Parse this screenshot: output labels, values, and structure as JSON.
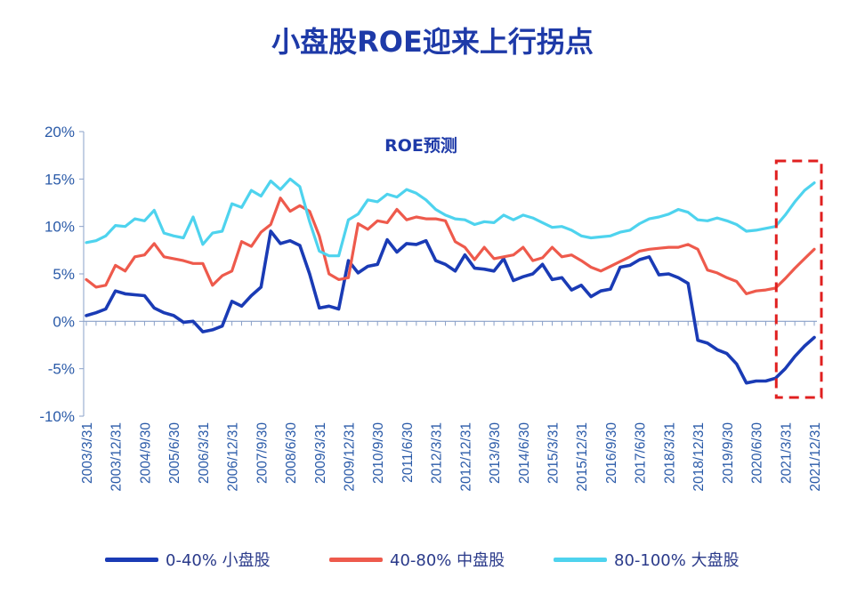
{
  "title": "小盘股ROE迎来上行拐点",
  "chart_data": {
    "type": "line",
    "subtitle": "ROE预测",
    "ylim": [
      -10,
      20
    ],
    "y_ticks": [
      "20%",
      "15%",
      "10%",
      "5%",
      "0%",
      "-5%",
      "-10%"
    ],
    "y_tick_values": [
      20,
      15,
      10,
      5,
      0,
      -5,
      -10
    ],
    "x_tick_labels": [
      "2003/3/31",
      "2003/12/31",
      "2004/9/30",
      "2005/6/30",
      "2006/3/31",
      "2006/12/31",
      "2007/9/30",
      "2008/6/30",
      "2009/3/31",
      "2009/12/31",
      "2010/9/30",
      "2011/6/30",
      "2012/3/31",
      "2012/12/31",
      "2013/9/30",
      "2014/6/30",
      "2015/3/31",
      "2015/12/31",
      "2016/9/30",
      "2017/6/30",
      "2018/3/31",
      "2018/12/31",
      "2019/9/30",
      "2020/6/30",
      "2021/3/31",
      "2021/12/31"
    ],
    "forecast_box": {
      "from_index": 72,
      "to_index": 75,
      "color": "#e02020"
    },
    "series": [
      {
        "name": "0-40% 小盘股",
        "color": "#1a3bb5",
        "values": [
          0.6,
          0.9,
          1.3,
          3.2,
          2.9,
          2.8,
          2.7,
          1.4,
          0.9,
          0.6,
          -0.1,
          0.0,
          -1.1,
          -0.9,
          -0.5,
          2.1,
          1.6,
          2.7,
          3.6,
          9.5,
          8.2,
          8.5,
          8.0,
          5.0,
          1.4,
          1.6,
          1.3,
          6.4,
          5.1,
          5.8,
          6.0,
          8.6,
          7.3,
          8.2,
          8.1,
          8.5,
          6.4,
          6.0,
          5.3,
          7.0,
          5.6,
          5.5,
          5.3,
          6.6,
          4.3,
          4.7,
          5.0,
          6.0,
          4.4,
          4.6,
          3.3,
          3.8,
          2.6,
          3.2,
          3.4,
          5.7,
          5.9,
          6.5,
          6.8,
          4.9,
          5.0,
          4.6,
          4.0,
          -2.0,
          -2.3,
          -3.0,
          -3.4,
          -4.5,
          -6.5,
          -6.3,
          -6.3,
          -6.0,
          -5.0,
          -3.7,
          -2.6,
          -1.7
        ]
      },
      {
        "name": "40-80% 中盘股",
        "color": "#ee5a4c",
        "values": [
          4.4,
          3.6,
          3.8,
          5.9,
          5.3,
          6.8,
          7.0,
          8.2,
          6.8,
          6.6,
          6.4,
          6.1,
          6.1,
          3.8,
          4.8,
          5.3,
          8.4,
          7.9,
          9.4,
          10.2,
          13.0,
          11.6,
          12.2,
          11.6,
          9.0,
          5.0,
          4.4,
          4.6,
          10.3,
          9.7,
          10.6,
          10.4,
          11.8,
          10.7,
          11.0,
          10.8,
          10.8,
          10.6,
          8.4,
          7.8,
          6.5,
          7.8,
          6.6,
          6.8,
          7.0,
          7.8,
          6.4,
          6.7,
          7.8,
          6.8,
          7.0,
          6.4,
          5.7,
          5.3,
          5.8,
          6.3,
          6.8,
          7.4,
          7.6,
          7.7,
          7.8,
          7.8,
          8.1,
          7.6,
          5.4,
          5.1,
          4.6,
          4.2,
          2.9,
          3.2,
          3.3,
          3.5,
          4.5,
          5.6,
          6.6,
          7.6
        ]
      },
      {
        "name": "80-100% 大盘股",
        "color": "#4ed3ee",
        "values": [
          8.3,
          8.5,
          9.0,
          10.1,
          10.0,
          10.8,
          10.6,
          11.7,
          9.3,
          9.0,
          8.8,
          11.0,
          8.1,
          9.3,
          9.5,
          12.4,
          12.0,
          13.8,
          13.2,
          14.8,
          13.9,
          15.0,
          14.2,
          10.5,
          7.4,
          6.9,
          6.9,
          10.7,
          11.3,
          12.8,
          12.6,
          13.4,
          13.1,
          13.9,
          13.5,
          12.8,
          11.8,
          11.2,
          10.8,
          10.7,
          10.2,
          10.5,
          10.4,
          11.2,
          10.7,
          11.2,
          10.9,
          10.4,
          9.9,
          10.0,
          9.6,
          9.0,
          8.8,
          8.9,
          9.0,
          9.4,
          9.6,
          10.3,
          10.8,
          11.0,
          11.3,
          11.8,
          11.5,
          10.7,
          10.6,
          10.9,
          10.6,
          10.2,
          9.5,
          9.6,
          9.8,
          10.0,
          11.2,
          12.6,
          13.8,
          14.6
        ]
      }
    ]
  }
}
